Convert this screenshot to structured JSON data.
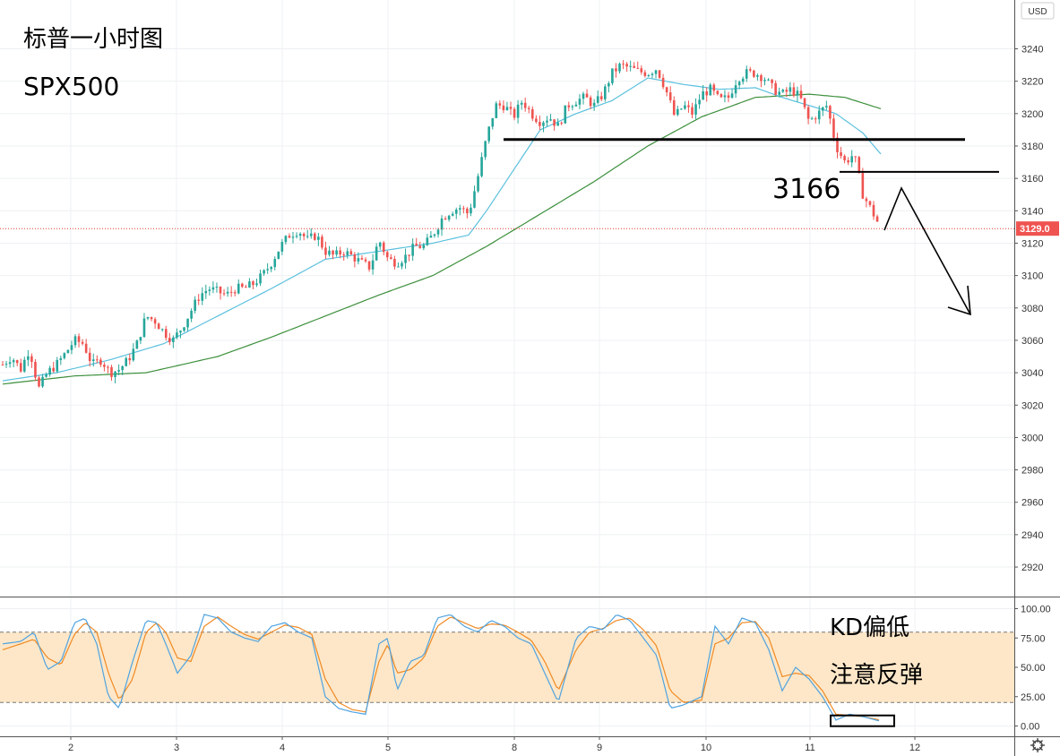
{
  "chart_data": [
    {
      "type": "candlestick",
      "title": "标普一小时图",
      "subtitle": "SPX500",
      "currency": "USD",
      "last_price_label": "3129.0",
      "ylim": [
        2900,
        3252
      ],
      "yticks": [
        2920,
        2940,
        2960,
        2980,
        3000,
        3020,
        3040,
        3060,
        3080,
        3100,
        3120,
        3140,
        3160,
        3180,
        3200,
        3220,
        3240
      ],
      "xticks": [
        "2",
        "3",
        "4",
        "5",
        "8",
        "9",
        "10",
        "11",
        "12"
      ],
      "grid": true,
      "colors": {
        "up": "#26a69a",
        "down": "#ef5350",
        "ma_fast": "#5bc0de",
        "ma_slow": "#3c8f3c"
      },
      "annotations": {
        "level_label": "3166",
        "resistance_1": 3184,
        "resistance_2": 3164,
        "last_price": 3129
      },
      "path_points": [
        3128,
        3154,
        3076
      ],
      "ohlc_anchors": [
        [
          0,
          3045
        ],
        [
          10,
          3050
        ],
        [
          20,
          3042
        ],
        [
          30,
          3055
        ],
        [
          40,
          3030
        ],
        [
          50,
          3040
        ],
        [
          60,
          3045
        ],
        [
          70,
          3052
        ],
        [
          80,
          3060
        ],
        [
          90,
          3058
        ],
        [
          100,
          3045
        ],
        [
          110,
          3048
        ],
        [
          120,
          3040
        ],
        [
          130,
          3042
        ],
        [
          140,
          3048
        ],
        [
          150,
          3058
        ],
        [
          160,
          3075
        ],
        [
          170,
          3072
        ],
        [
          180,
          3065
        ],
        [
          190,
          3060
        ],
        [
          200,
          3068
        ],
        [
          210,
          3078
        ],
        [
          220,
          3088
        ],
        [
          230,
          3092
        ],
        [
          240,
          3090
        ],
        [
          250,
          3088
        ],
        [
          260,
          3092
        ],
        [
          270,
          3092
        ],
        [
          280,
          3095
        ],
        [
          290,
          3100
        ],
        [
          300,
          3108
        ],
        [
          310,
          3118
        ],
        [
          320,
          3125
        ],
        [
          330,
          3128
        ],
        [
          340,
          3122
        ],
        [
          350,
          3125
        ],
        [
          360,
          3115
        ],
        [
          370,
          3112
        ],
        [
          380,
          3115
        ],
        [
          390,
          3112
        ],
        [
          400,
          3108
        ],
        [
          410,
          3105
        ],
        [
          420,
          3122
        ],
        [
          430,
          3110
        ],
        [
          440,
          3108
        ],
        [
          450,
          3112
        ],
        [
          460,
          3118
        ],
        [
          470,
          3118
        ],
        [
          480,
          3125
        ],
        [
          490,
          3135
        ],
        [
          500,
          3140
        ],
        [
          510,
          3142
        ],
        [
          520,
          3138
        ],
        [
          530,
          3160
        ],
        [
          540,
          3185
        ],
        [
          550,
          3205
        ],
        [
          560,
          3205
        ],
        [
          570,
          3198
        ],
        [
          580,
          3208
        ],
        [
          590,
          3200
        ],
        [
          600,
          3195
        ],
        [
          610,
          3198
        ],
        [
          620,
          3192
        ],
        [
          630,
          3205
        ],
        [
          640,
          3208
        ],
        [
          650,
          3210
        ],
        [
          660,
          3205
        ],
        [
          670,
          3212
        ],
        [
          680,
          3225
        ],
        [
          690,
          3230
        ],
        [
          700,
          3228
        ],
        [
          710,
          3226
        ],
        [
          720,
          3225
        ],
        [
          730,
          3228
        ],
        [
          740,
          3215
        ],
        [
          750,
          3198
        ],
        [
          760,
          3205
        ],
        [
          770,
          3200
        ],
        [
          780,
          3212
        ],
        [
          790,
          3215
        ],
        [
          800,
          3208
        ],
        [
          810,
          3210
        ],
        [
          820,
          3222
        ],
        [
          830,
          3225
        ],
        [
          840,
          3225
        ],
        [
          850,
          3222
        ],
        [
          860,
          3215
        ],
        [
          870,
          3212
        ],
        [
          880,
          3215
        ],
        [
          890,
          3210
        ],
        [
          900,
          3195
        ],
        [
          910,
          3200
        ],
        [
          920,
          3205
        ],
        [
          930,
          3180
        ],
        [
          940,
          3170
        ],
        [
          950,
          3175
        ],
        [
          960,
          3150
        ],
        [
          970,
          3140
        ],
        [
          980,
          3129
        ]
      ],
      "ma_fast_anchors": [
        [
          0,
          3035
        ],
        [
          60,
          3040
        ],
        [
          120,
          3048
        ],
        [
          180,
          3058
        ],
        [
          240,
          3075
        ],
        [
          300,
          3092
        ],
        [
          360,
          3110
        ],
        [
          420,
          3115
        ],
        [
          480,
          3120
        ],
        [
          520,
          3125
        ],
        [
          540,
          3140
        ],
        [
          570,
          3165
        ],
        [
          600,
          3190
        ],
        [
          640,
          3200
        ],
        [
          680,
          3208
        ],
        [
          720,
          3222
        ],
        [
          760,
          3218
        ],
        [
          800,
          3215
        ],
        [
          840,
          3216
        ],
        [
          870,
          3210
        ],
        [
          900,
          3205
        ],
        [
          930,
          3200
        ],
        [
          960,
          3188
        ],
        [
          980,
          3175
        ]
      ],
      "ma_slow_anchors": [
        [
          0,
          3033
        ],
        [
          80,
          3038
        ],
        [
          160,
          3040
        ],
        [
          240,
          3050
        ],
        [
          300,
          3062
        ],
        [
          360,
          3075
        ],
        [
          420,
          3088
        ],
        [
          480,
          3100
        ],
        [
          540,
          3118
        ],
        [
          600,
          3138
        ],
        [
          660,
          3158
        ],
        [
          720,
          3180
        ],
        [
          780,
          3198
        ],
        [
          840,
          3210
        ],
        [
          900,
          3212
        ],
        [
          940,
          3210
        ],
        [
          980,
          3203
        ]
      ]
    },
    {
      "type": "line",
      "title": "KD偏低",
      "subtitle": "注意反弹",
      "ylim": [
        -5,
        104
      ],
      "yticks": [
        "0.00",
        "25.00",
        "50.00",
        "75.00",
        "100.00"
      ],
      "band": [
        20,
        80
      ],
      "colors": {
        "k": "#4fa3e0",
        "d": "#f08a24",
        "band": "#fde7c8"
      },
      "k_anchors": [
        [
          0,
          70
        ],
        [
          20,
          72
        ],
        [
          35,
          80
        ],
        [
          50,
          48
        ],
        [
          65,
          55
        ],
        [
          80,
          88
        ],
        [
          92,
          92
        ],
        [
          105,
          70
        ],
        [
          118,
          25
        ],
        [
          130,
          15
        ],
        [
          145,
          55
        ],
        [
          160,
          90
        ],
        [
          172,
          88
        ],
        [
          182,
          70
        ],
        [
          195,
          45
        ],
        [
          210,
          60
        ],
        [
          225,
          95
        ],
        [
          240,
          92
        ],
        [
          255,
          80
        ],
        [
          270,
          75
        ],
        [
          285,
          72
        ],
        [
          300,
          85
        ],
        [
          315,
          88
        ],
        [
          330,
          80
        ],
        [
          345,
          75
        ],
        [
          360,
          25
        ],
        [
          375,
          15
        ],
        [
          390,
          12
        ],
        [
          405,
          10
        ],
        [
          420,
          70
        ],
        [
          430,
          75
        ],
        [
          440,
          30
        ],
        [
          455,
          55
        ],
        [
          470,
          60
        ],
        [
          485,
          92
        ],
        [
          500,
          95
        ],
        [
          515,
          85
        ],
        [
          530,
          80
        ],
        [
          545,
          90
        ],
        [
          560,
          85
        ],
        [
          575,
          75
        ],
        [
          590,
          70
        ],
        [
          605,
          45
        ],
        [
          620,
          20
        ],
        [
          640,
          75
        ],
        [
          655,
          85
        ],
        [
          670,
          82
        ],
        [
          685,
          95
        ],
        [
          700,
          90
        ],
        [
          715,
          75
        ],
        [
          730,
          60
        ],
        [
          745,
          15
        ],
        [
          760,
          18
        ],
        [
          780,
          25
        ],
        [
          795,
          85
        ],
        [
          810,
          70
        ],
        [
          825,
          92
        ],
        [
          840,
          88
        ],
        [
          855,
          65
        ],
        [
          870,
          30
        ],
        [
          885,
          50
        ],
        [
          900,
          40
        ],
        [
          915,
          25
        ],
        [
          930,
          5
        ],
        [
          945,
          10
        ],
        [
          960,
          8
        ],
        [
          980,
          4
        ]
      ],
      "d_anchors": [
        [
          0,
          65
        ],
        [
          20,
          70
        ],
        [
          35,
          74
        ],
        [
          50,
          58
        ],
        [
          65,
          52
        ],
        [
          80,
          78
        ],
        [
          92,
          88
        ],
        [
          105,
          80
        ],
        [
          118,
          45
        ],
        [
          130,
          22
        ],
        [
          145,
          40
        ],
        [
          160,
          80
        ],
        [
          172,
          88
        ],
        [
          182,
          80
        ],
        [
          195,
          58
        ],
        [
          210,
          55
        ],
        [
          225,
          85
        ],
        [
          240,
          93
        ],
        [
          255,
          85
        ],
        [
          270,
          78
        ],
        [
          285,
          74
        ],
        [
          300,
          80
        ],
        [
          315,
          86
        ],
        [
          330,
          84
        ],
        [
          345,
          78
        ],
        [
          360,
          40
        ],
        [
          375,
          20
        ],
        [
          390,
          14
        ],
        [
          405,
          12
        ],
        [
          420,
          55
        ],
        [
          430,
          70
        ],
        [
          440,
          45
        ],
        [
          455,
          48
        ],
        [
          470,
          58
        ],
        [
          485,
          85
        ],
        [
          500,
          93
        ],
        [
          515,
          88
        ],
        [
          530,
          83
        ],
        [
          545,
          87
        ],
        [
          560,
          86
        ],
        [
          575,
          80
        ],
        [
          590,
          73
        ],
        [
          605,
          55
        ],
        [
          620,
          30
        ],
        [
          640,
          65
        ],
        [
          655,
          80
        ],
        [
          670,
          83
        ],
        [
          685,
          90
        ],
        [
          700,
          92
        ],
        [
          715,
          82
        ],
        [
          730,
          68
        ],
        [
          745,
          30
        ],
        [
          760,
          20
        ],
        [
          780,
          22
        ],
        [
          795,
          70
        ],
        [
          810,
          75
        ],
        [
          825,
          88
        ],
        [
          840,
          89
        ],
        [
          855,
          75
        ],
        [
          870,
          42
        ],
        [
          885,
          45
        ],
        [
          900,
          43
        ],
        [
          915,
          30
        ],
        [
          930,
          10
        ],
        [
          945,
          9
        ],
        [
          960,
          8
        ],
        [
          980,
          5
        ]
      ]
    }
  ]
}
